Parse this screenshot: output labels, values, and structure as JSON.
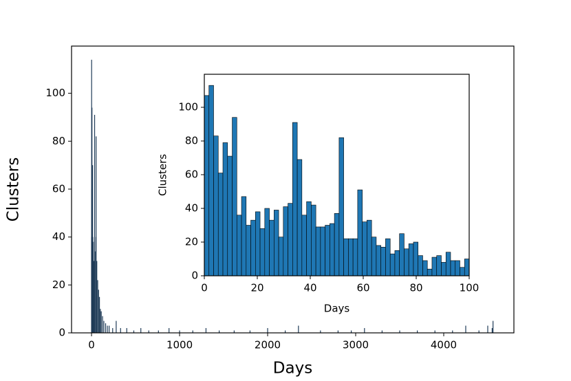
{
  "chart_data": [
    {
      "type": "bar",
      "xlabel": "Days",
      "ylabel": "Clusters",
      "color": "#1f3b57",
      "x": [
        0,
        1,
        3,
        5,
        8,
        12,
        15,
        20,
        26,
        35,
        40,
        50,
        52,
        60,
        70,
        80,
        90,
        100,
        110,
        125,
        140,
        160,
        180,
        200,
        240,
        280,
        330,
        400,
        480,
        560,
        650,
        760,
        880,
        1000,
        1150,
        1300,
        1450,
        1620,
        1800,
        2000,
        2200,
        2350,
        2600,
        2800,
        2950,
        3100,
        3300,
        3500,
        3700,
        3900,
        4100,
        4250,
        4400,
        4500,
        4550,
        4560
      ],
      "values": [
        40,
        114,
        60,
        94,
        45,
        70,
        40,
        38,
        30,
        91,
        34,
        40,
        82,
        30,
        22,
        18,
        15,
        10,
        9,
        7,
        5,
        4,
        3,
        3,
        2,
        5,
        2,
        2,
        1,
        2,
        1,
        1,
        2,
        1,
        1,
        2,
        1,
        1,
        1,
        2,
        1,
        3,
        1,
        1,
        1,
        2,
        1,
        1,
        1,
        1,
        1,
        3,
        1,
        3,
        2,
        5
      ],
      "xlim": [
        -227,
        4797
      ],
      "ylim": [
        0,
        119.7
      ],
      "xticks": [
        0,
        1000,
        2000,
        3000,
        4000
      ],
      "yticks": [
        0,
        20,
        40,
        60,
        80,
        100
      ]
    },
    {
      "type": "histogram",
      "xlabel": "Days",
      "ylabel": "Clusters",
      "color": "#1f77b4",
      "edgecolor": "#000000",
      "bins": [
        0,
        1.75,
        3.51,
        5.26,
        7.02,
        8.77,
        10.53,
        12.28,
        14.04,
        15.79,
        17.54,
        19.3,
        21.05,
        22.81,
        24.56,
        26.32,
        28.07,
        29.82,
        31.58,
        33.33,
        35.09,
        36.84,
        38.6,
        40.35,
        42.11,
        43.86,
        45.61,
        47.37,
        49.12,
        50.88,
        52.63,
        54.39,
        56.14,
        57.89,
        59.65,
        61.4,
        63.16,
        64.91,
        66.67,
        68.42,
        70.18,
        71.93,
        73.68,
        75.44,
        77.19,
        78.95,
        80.7,
        82.46,
        84.21,
        85.96,
        87.72,
        89.47,
        91.23,
        92.98,
        94.74,
        96.49,
        98.25,
        100
      ],
      "values": [
        107,
        113,
        83,
        61,
        79,
        71,
        94,
        36,
        47,
        30,
        33,
        38,
        28,
        40,
        33,
        39,
        23,
        41,
        43,
        91,
        69,
        36,
        44,
        42,
        29,
        29,
        30,
        31,
        37,
        82,
        22,
        22,
        22,
        51,
        32,
        33,
        23,
        18,
        17,
        22,
        13,
        15,
        25,
        16,
        19,
        20,
        12,
        9,
        4,
        11,
        12,
        8,
        14,
        9,
        9,
        5,
        10
      ],
      "xlim": [
        0,
        100
      ],
      "ylim": [
        0,
        119.6
      ],
      "xticks": [
        0,
        20,
        40,
        60,
        80,
        100
      ],
      "yticks": [
        0,
        20,
        40,
        60,
        80,
        100
      ]
    }
  ]
}
